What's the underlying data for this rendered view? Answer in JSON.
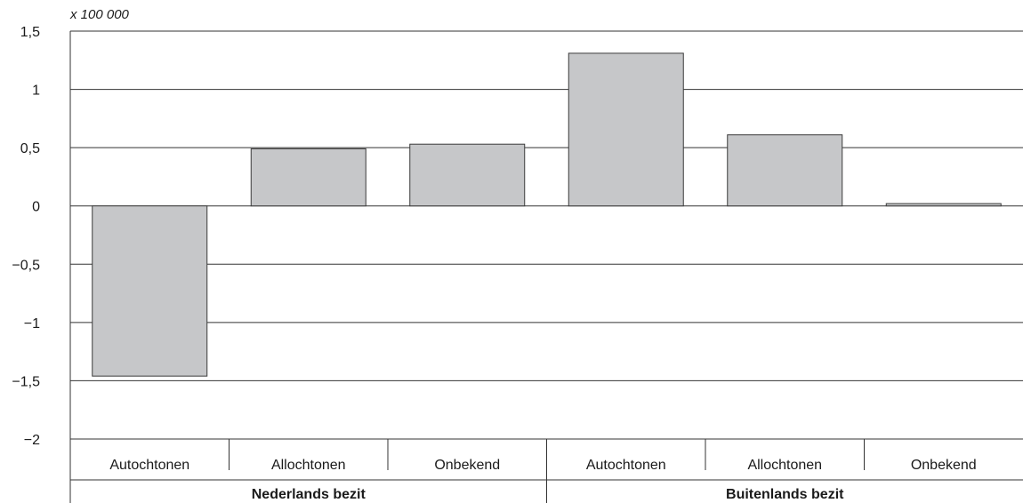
{
  "chart_data": {
    "type": "bar",
    "unit_label": "x 100 000",
    "categories": [
      "Autochtonen",
      "Allochtonen",
      "Onbekend",
      "Autochtonen",
      "Allochtonen",
      "Onbekend"
    ],
    "groups": [
      {
        "label": "Nederlands bezit",
        "categories": [
          0,
          1,
          2
        ]
      },
      {
        "label": "Buitenlands bezit",
        "categories": [
          3,
          4,
          5
        ]
      }
    ],
    "values": [
      -1.46,
      0.49,
      0.53,
      1.31,
      0.61,
      0.02
    ],
    "ylim": [
      -2,
      1.5
    ],
    "yticks": [
      1.5,
      1,
      0.5,
      0,
      -0.5,
      -1,
      -1.5,
      -2
    ],
    "ytick_labels": [
      "1,5",
      "1",
      "0,5",
      "0",
      "−0,5",
      "−1",
      "−1,5",
      "−2"
    ],
    "grid": true,
    "bar_color": "#c6c7c9",
    "bar_edge_color": "#3a3a3a",
    "grid_color": "#333333"
  }
}
